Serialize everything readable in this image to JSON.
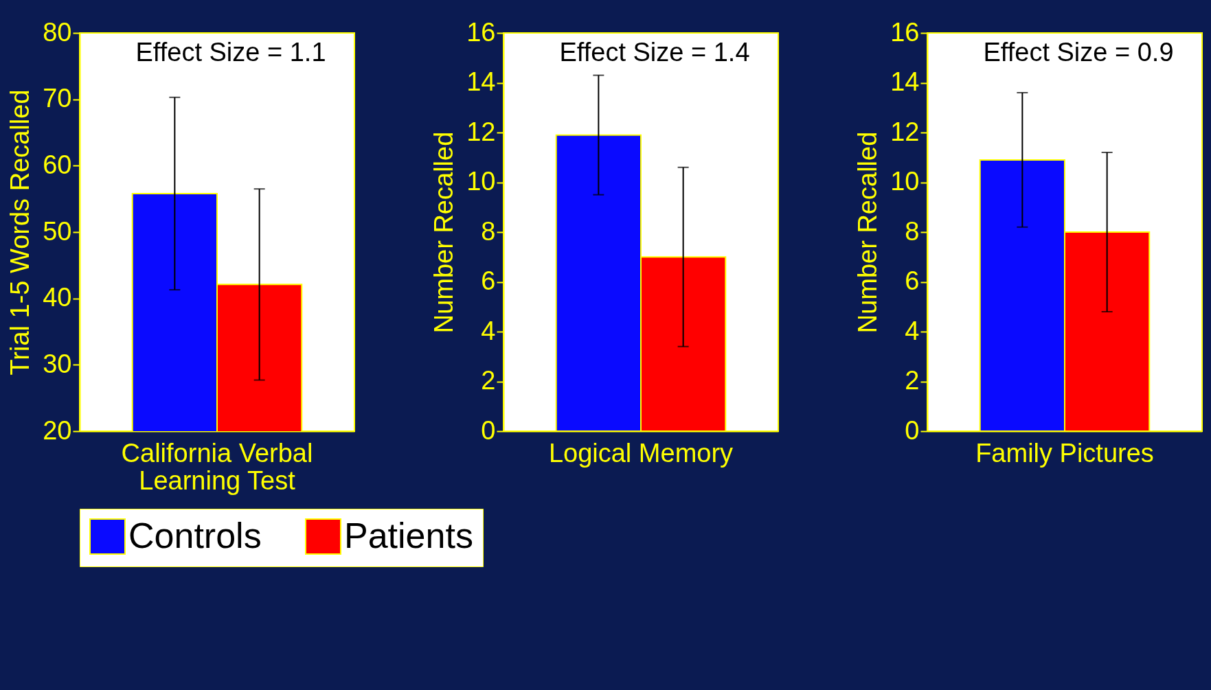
{
  "chart_data": [
    {
      "type": "bar",
      "categories": [
        "California Verbal Learning Test"
      ],
      "ylabel": "Trial 1-5 Words Recalled",
      "ylim": [
        20,
        80
      ],
      "yticks": [
        20,
        30,
        40,
        50,
        60,
        70,
        80
      ],
      "annotations": [
        "Effect Size = 1.1"
      ],
      "legend": "bottom",
      "series": [
        {
          "name": "Controls",
          "color": "#0a0aff",
          "values": [
            55.8
          ],
          "errors": [
            14.5
          ]
        },
        {
          "name": "Patients",
          "color": "#ff0000",
          "values": [
            42.1
          ],
          "errors": [
            14.4
          ]
        }
      ]
    },
    {
      "type": "bar",
      "categories": [
        "Logical Memory"
      ],
      "ylabel": "Number Recalled",
      "ylim": [
        0,
        16
      ],
      "yticks": [
        0,
        2,
        4,
        6,
        8,
        10,
        12,
        14,
        16
      ],
      "annotations": [
        "Effect Size = 1.4"
      ],
      "series": [
        {
          "name": "Controls",
          "color": "#0a0aff",
          "values": [
            11.9
          ],
          "errors": [
            2.4
          ]
        },
        {
          "name": "Patients",
          "color": "#ff0000",
          "values": [
            7.0
          ],
          "errors": [
            3.6
          ]
        }
      ]
    },
    {
      "type": "bar",
      "categories": [
        "Family Pictures"
      ],
      "ylabel": "Number Recalled",
      "ylim": [
        0,
        16
      ],
      "yticks": [
        0,
        2,
        4,
        6,
        8,
        10,
        12,
        14,
        16
      ],
      "annotations": [
        "Effect Size = 0.9"
      ],
      "series": [
        {
          "name": "Controls",
          "color": "#0a0aff",
          "values": [
            10.9
          ],
          "errors": [
            2.7
          ]
        },
        {
          "name": "Patients",
          "color": "#ff0000",
          "values": [
            8.0
          ],
          "errors": [
            3.2
          ]
        }
      ]
    }
  ]
}
